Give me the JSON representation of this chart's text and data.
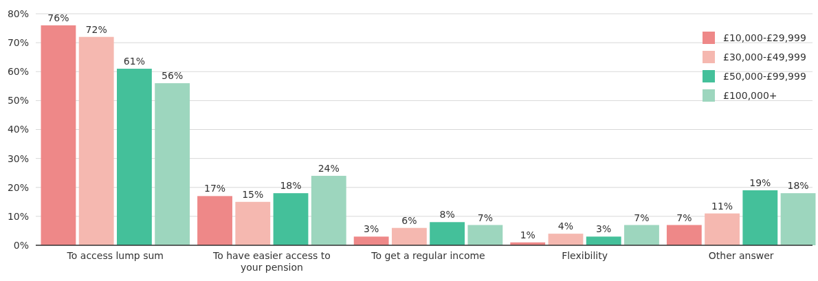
{
  "chart_data": {
    "type": "bar",
    "categories": [
      "To access lump sum",
      "To have easier access to your pension",
      "To get a regular income",
      "Flexibility",
      "Other answer"
    ],
    "series": [
      {
        "name": "£10,000-£29,999",
        "color": "#ee8888",
        "values": [
          76,
          17,
          3,
          1,
          7
        ],
        "value_labels": [
          "76%",
          "17%",
          "3%",
          "1%",
          "7%"
        ]
      },
      {
        "name": "£30,000-£49,999",
        "color": "#f5b8b0",
        "values": [
          72,
          15,
          6,
          4,
          11
        ],
        "value_labels": [
          "72%",
          "15%",
          "6%",
          "4%",
          "11%"
        ]
      },
      {
        "name": "£50,000-£99,999",
        "color": "#44c09a",
        "values": [
          61,
          18,
          8,
          3,
          19
        ],
        "value_labels": [
          "61%",
          "18%",
          "8%",
          "3%",
          "19%"
        ]
      },
      {
        "name": "£100,000+",
        "color": "#9dd6be",
        "values": [
          56,
          24,
          7,
          7,
          18
        ],
        "value_labels": [
          "56%",
          "24%",
          "7%",
          "7%",
          "18%"
        ]
      }
    ],
    "ylim": [
      0,
      80
    ],
    "yticks": [
      {
        "value": 0,
        "label": "0%"
      },
      {
        "value": 10,
        "label": "10%"
      },
      {
        "value": 20,
        "label": "20%"
      },
      {
        "value": 30,
        "label": "30%"
      },
      {
        "value": 40,
        "label": "40%"
      },
      {
        "value": 50,
        "label": "50%"
      },
      {
        "value": 60,
        "label": "60%"
      },
      {
        "value": 70,
        "label": "70%"
      },
      {
        "value": 80,
        "label": "80%"
      }
    ],
    "grid": "y",
    "legend": "top right"
  }
}
